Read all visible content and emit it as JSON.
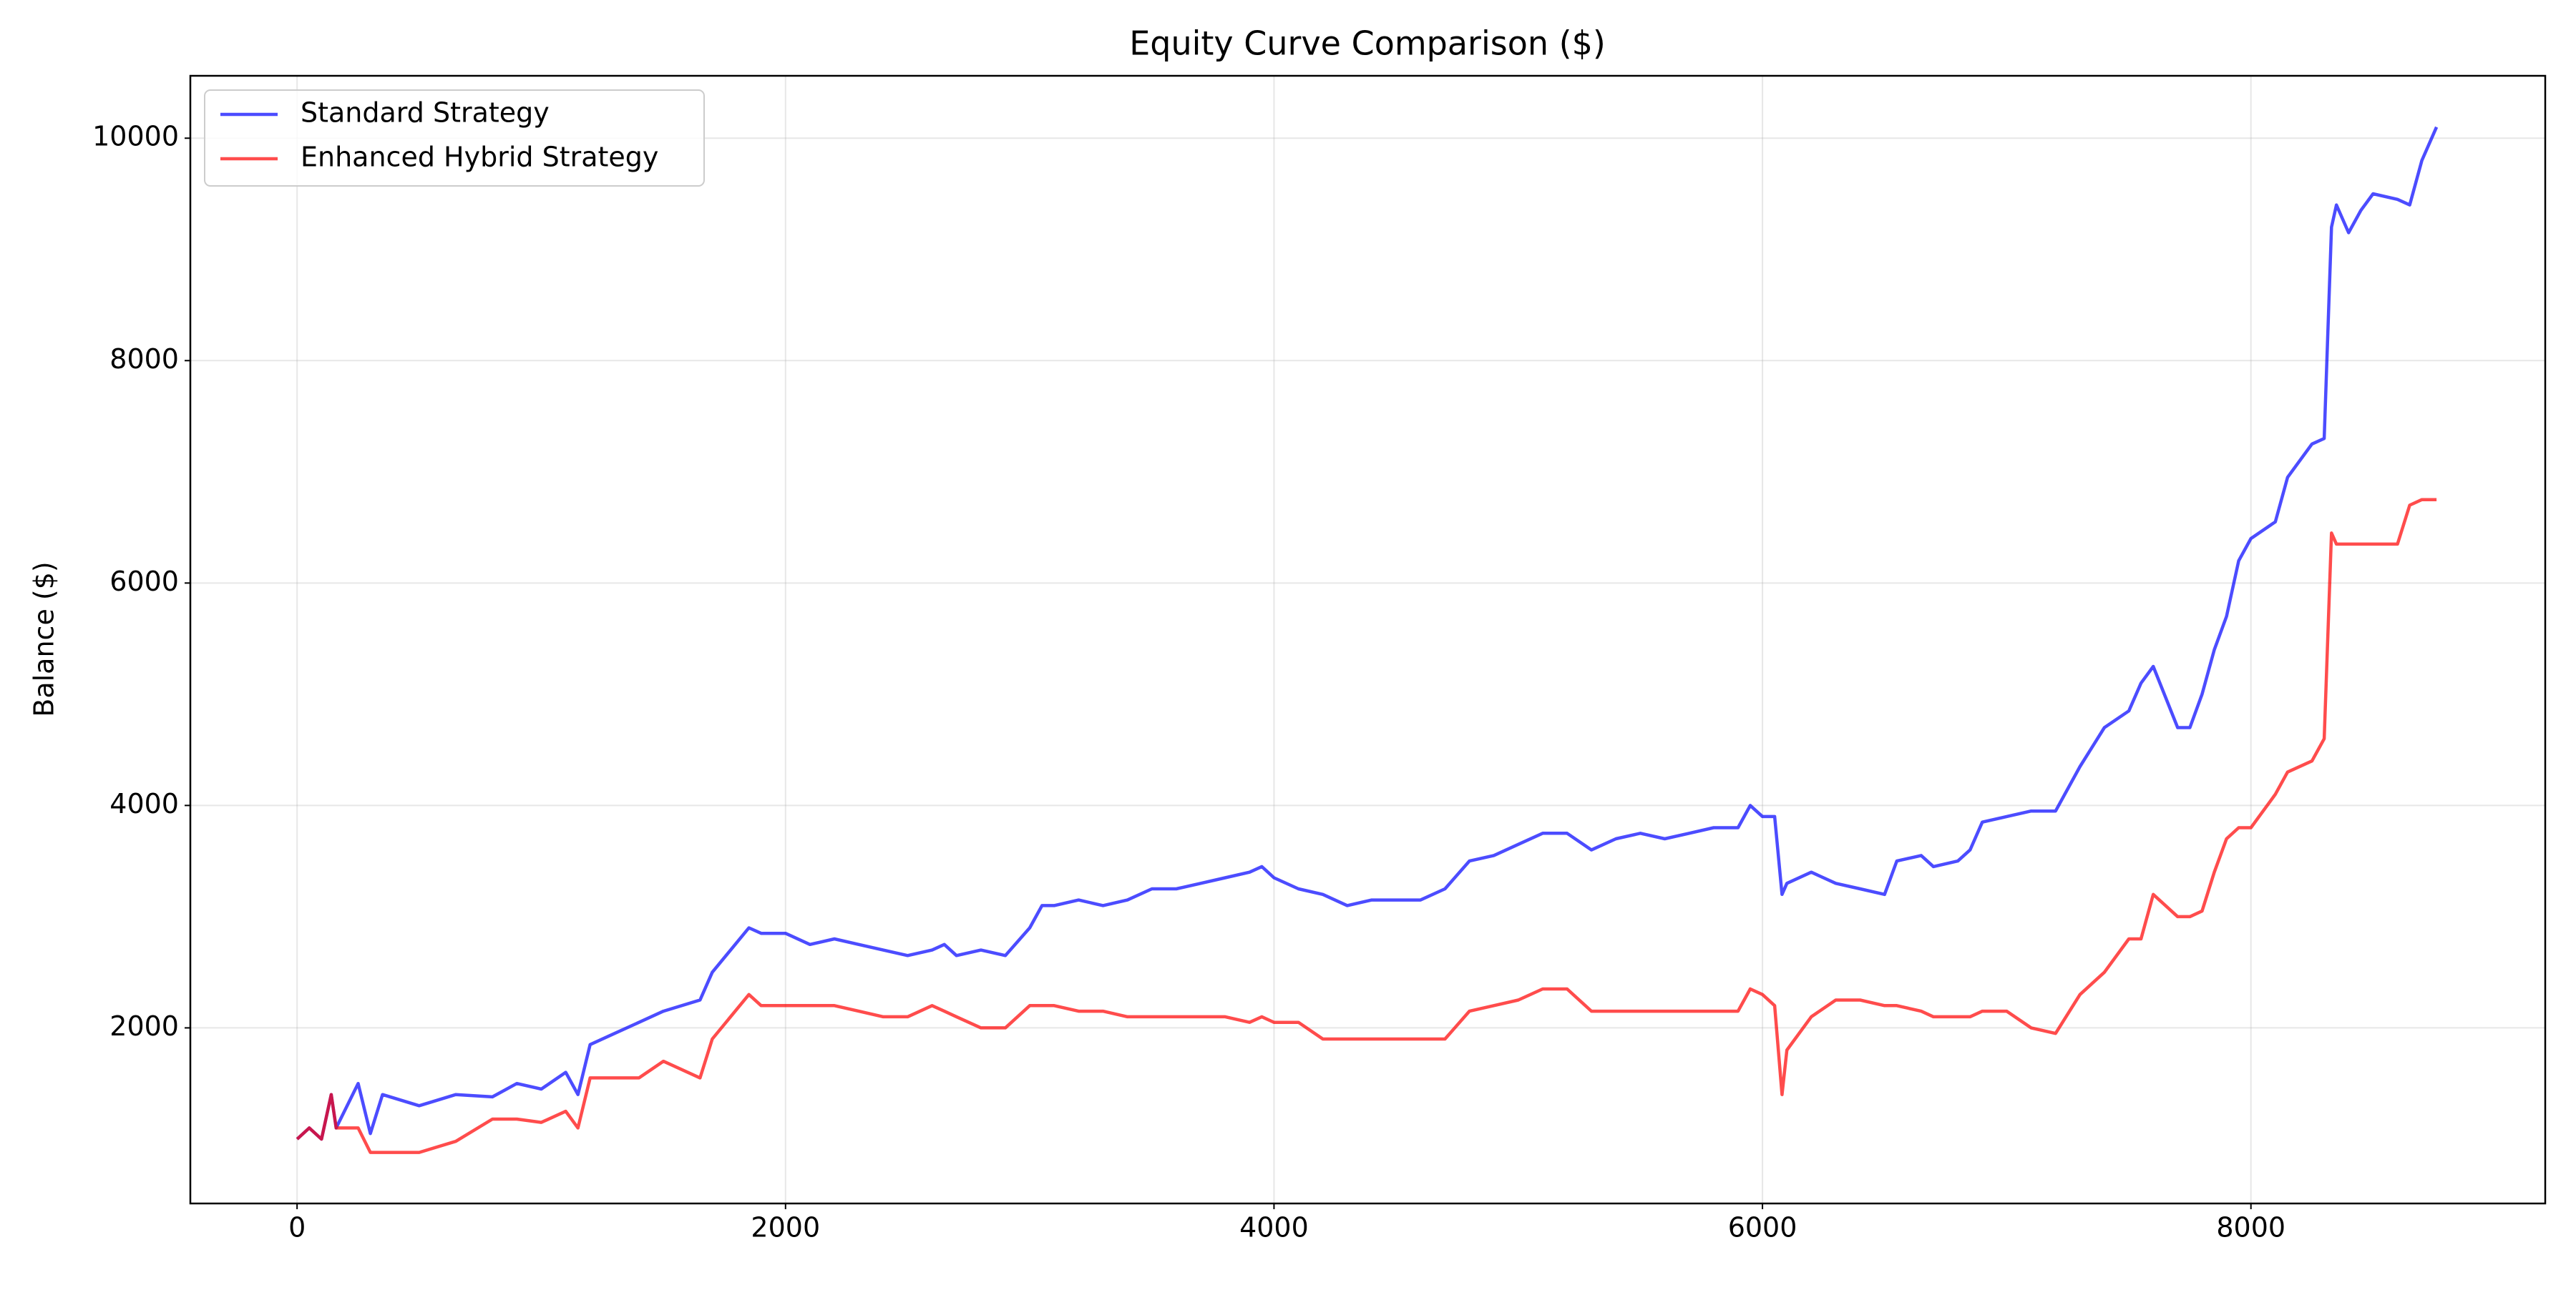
{
  "chart_data": {
    "type": "line",
    "title": "Equity Curve Comparison ($)",
    "y_label": "Balance ($)",
    "x": [
      0,
      50,
      100,
      140,
      160,
      250,
      300,
      350,
      500,
      650,
      800,
      900,
      1000,
      1100,
      1150,
      1200,
      1300,
      1400,
      1500,
      1650,
      1700,
      1850,
      1900,
      2000,
      2100,
      2200,
      2300,
      2400,
      2500,
      2600,
      2650,
      2700,
      2800,
      2900,
      3000,
      3050,
      3100,
      3200,
      3300,
      3400,
      3500,
      3600,
      3700,
      3800,
      3900,
      3950,
      4000,
      4100,
      4200,
      4300,
      4400,
      4500,
      4600,
      4700,
      4800,
      4900,
      5000,
      5100,
      5200,
      5300,
      5400,
      5500,
      5600,
      5700,
      5800,
      5900,
      5950,
      6000,
      6050,
      6080,
      6100,
      6200,
      6300,
      6400,
      6500,
      6550,
      6650,
      6700,
      6800,
      6850,
      6900,
      7000,
      7100,
      7200,
      7300,
      7400,
      7500,
      7550,
      7600,
      7700,
      7750,
      7800,
      7850,
      7900,
      7950,
      8000,
      8100,
      8150,
      8250,
      8300,
      8330,
      8350,
      8400,
      8450,
      8500,
      8600,
      8650,
      8700,
      8760
    ],
    "series": [
      {
        "name": "Standard Strategy",
        "color": "#0000ff",
        "values": [
          1000,
          1100,
          1000,
          1400,
          1100,
          1500,
          1050,
          1400,
          1300,
          1400,
          1380,
          1500,
          1450,
          1600,
          1400,
          1850,
          1950,
          2050,
          2150,
          2250,
          2500,
          2900,
          2850,
          2850,
          2750,
          2800,
          2750,
          2700,
          2650,
          2700,
          2750,
          2650,
          2700,
          2650,
          2900,
          3100,
          3100,
          3150,
          3100,
          3150,
          3250,
          3250,
          3300,
          3350,
          3400,
          3450,
          3350,
          3250,
          3200,
          3100,
          3150,
          3150,
          3150,
          3250,
          3500,
          3550,
          3650,
          3750,
          3750,
          3600,
          3700,
          3750,
          3700,
          3750,
          3800,
          3800,
          4000,
          3900,
          3900,
          3200,
          3300,
          3400,
          3300,
          3250,
          3200,
          3500,
          3550,
          3450,
          3500,
          3600,
          3850,
          3900,
          3950,
          3950,
          4350,
          4700,
          4850,
          5100,
          5250,
          4700,
          4700,
          5000,
          5400,
          5700,
          6200,
          6400,
          6550,
          6950,
          7250,
          7300,
          9200,
          9400,
          9150,
          9350,
          9500,
          9450,
          9400,
          9800,
          10100
        ]
      },
      {
        "name": "Enhanced Hybrid Strategy",
        "color": "#ff0000",
        "values": [
          1000,
          1100,
          1000,
          1400,
          1100,
          1100,
          880,
          880,
          880,
          980,
          1180,
          1180,
          1150,
          1250,
          1100,
          1550,
          1550,
          1550,
          1700,
          1550,
          1900,
          2300,
          2200,
          2200,
          2200,
          2200,
          2150,
          2100,
          2100,
          2200,
          2150,
          2100,
          2000,
          2000,
          2200,
          2200,
          2200,
          2150,
          2150,
          2100,
          2100,
          2100,
          2100,
          2100,
          2050,
          2100,
          2050,
          2050,
          1900,
          1900,
          1900,
          1900,
          1900,
          1900,
          2150,
          2200,
          2250,
          2350,
          2350,
          2150,
          2150,
          2150,
          2150,
          2150,
          2150,
          2150,
          2350,
          2300,
          2200,
          1400,
          1800,
          2100,
          2250,
          2250,
          2200,
          2200,
          2150,
          2100,
          2100,
          2100,
          2150,
          2150,
          2000,
          1950,
          2300,
          2500,
          2800,
          2800,
          3200,
          3000,
          3000,
          3050,
          3400,
          3700,
          3800,
          3800,
          4100,
          4300,
          4400,
          4600,
          6450,
          6350,
          6350,
          6350,
          6350,
          6350,
          6700,
          6750,
          6750
        ]
      }
    ],
    "xlim": [
      -437,
      9205
    ],
    "ylim": [
      421,
      10561
    ],
    "xticks": [
      0,
      2000,
      4000,
      6000,
      8000
    ],
    "yticks": [
      2000,
      4000,
      6000,
      8000,
      10000
    ],
    "grid": true,
    "legend": "upper left"
  }
}
